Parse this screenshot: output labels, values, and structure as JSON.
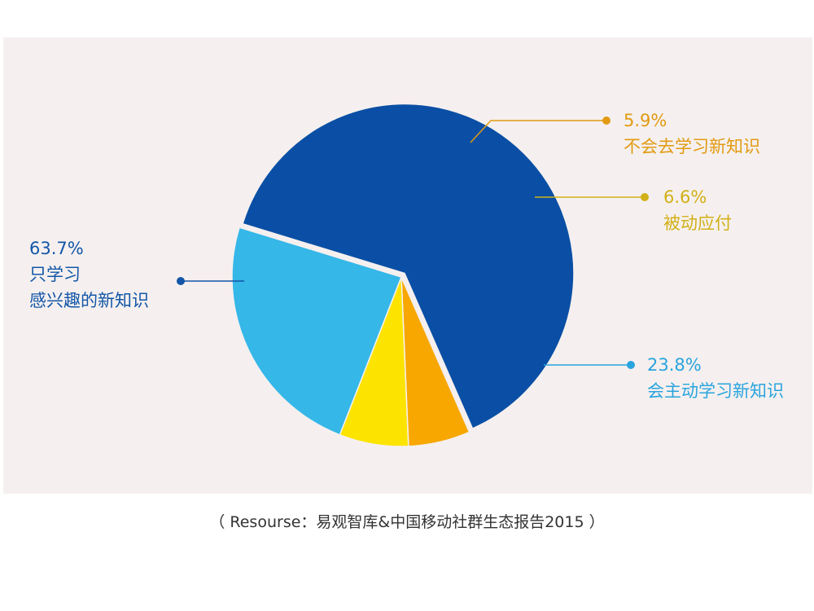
{
  "chart_data": {
    "type": "pie",
    "slices": [
      {
        "value": 63.7,
        "pct_label": "63.7%",
        "label_lines": [
          "只学习",
          "感兴趣的新知识"
        ],
        "color": "#0a4fa5",
        "label_color": "#1356a8"
      },
      {
        "value": 5.9,
        "pct_label": "5.9%",
        "label_lines": [
          "不会去学习新知识"
        ],
        "color": "#f7a700",
        "label_color": "#e29a12"
      },
      {
        "value": 6.6,
        "pct_label": "6.6%",
        "label_lines": [
          "被动应付"
        ],
        "color": "#fde400",
        "label_color": "#d2b018"
      },
      {
        "value": 23.8,
        "pct_label": "23.8%",
        "label_lines": [
          "会主动学习新知识"
        ],
        "color": "#35b7e8",
        "label_color": "#2aa4de"
      }
    ]
  },
  "source": "（ Resourse：易观智库&中国移动社群生态报告2015 ）"
}
